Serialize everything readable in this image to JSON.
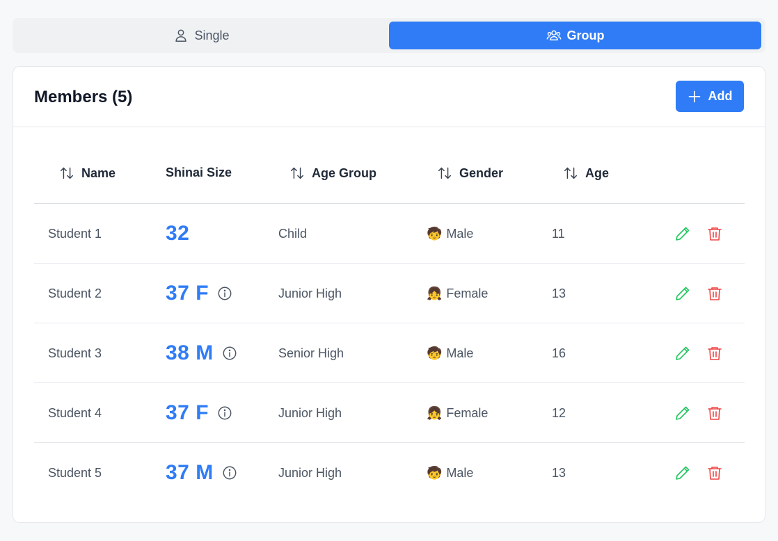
{
  "mode_toggle": {
    "single_label": "Single",
    "group_label": "Group",
    "active": "Group"
  },
  "card": {
    "title": "Members (5)",
    "add_label": "Add"
  },
  "table": {
    "headers": {
      "name": "Name",
      "shinai_size": "Shinai Size",
      "age_group": "Age Group",
      "gender": "Gender",
      "age": "Age"
    },
    "rows": [
      {
        "name": "Student 1",
        "shinai_size": "32",
        "has_info": false,
        "age_group": "Child",
        "gender_emoji": "🧒",
        "gender": "Male",
        "age": "11"
      },
      {
        "name": "Student 2",
        "shinai_size": "37 F",
        "has_info": true,
        "age_group": "Junior High",
        "gender_emoji": "👧",
        "gender": "Female",
        "age": "13"
      },
      {
        "name": "Student 3",
        "shinai_size": "38 M",
        "has_info": true,
        "age_group": "Senior High",
        "gender_emoji": "🧒",
        "gender": "Male",
        "age": "16"
      },
      {
        "name": "Student 4",
        "shinai_size": "37 F",
        "has_info": true,
        "age_group": "Junior High",
        "gender_emoji": "👧",
        "gender": "Female",
        "age": "12"
      },
      {
        "name": "Student 5",
        "shinai_size": "37 M",
        "has_info": true,
        "age_group": "Junior High",
        "gender_emoji": "🧒",
        "gender": "Male",
        "age": "13"
      }
    ]
  },
  "colors": {
    "accent": "#2f7cf6",
    "edit": "#22c55e",
    "delete": "#ef4444"
  },
  "icons": {
    "single": "user-icon",
    "group": "users-icon",
    "add": "plus-icon",
    "sort": "sort-arrows-icon",
    "info": "info-circle-icon",
    "edit": "pencil-icon",
    "delete": "trash-icon"
  }
}
